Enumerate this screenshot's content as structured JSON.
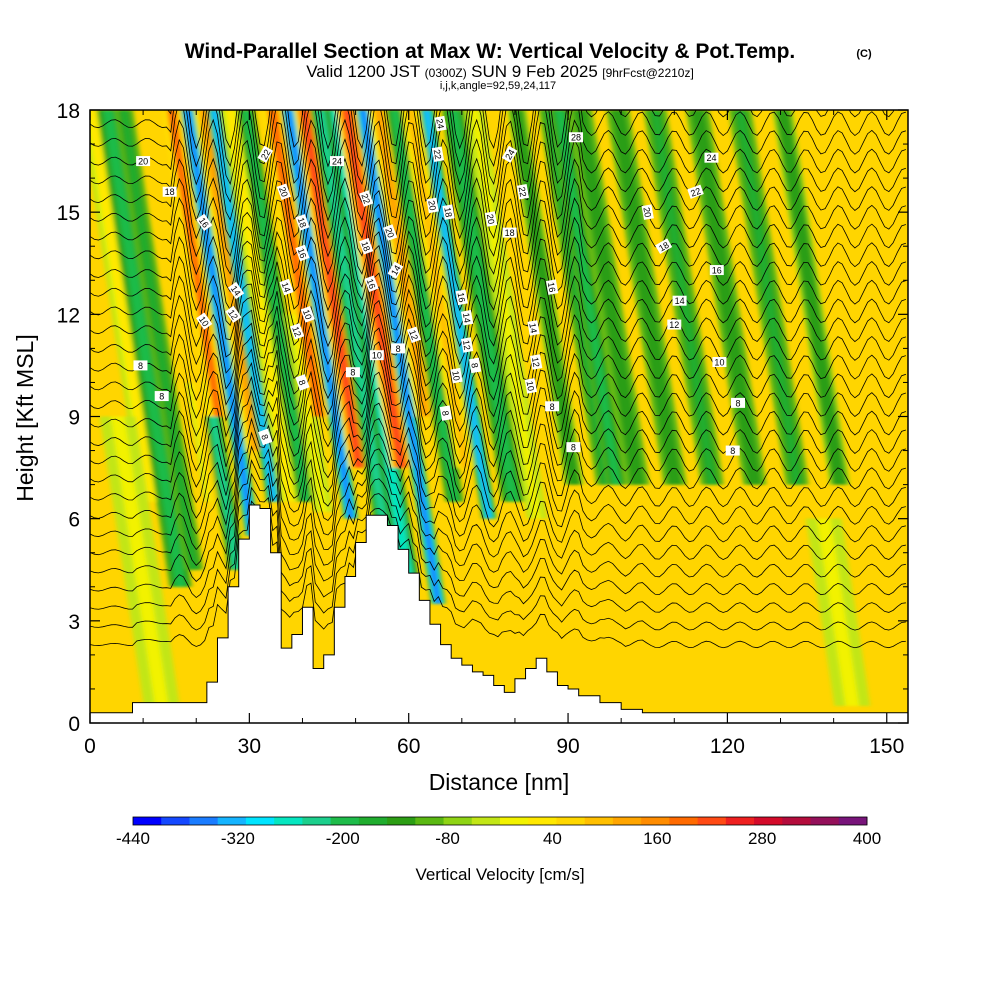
{
  "chart_data": {
    "type": "heatmap",
    "title": "Wind-Parallel Section at Max W: Vertical Velocity & Pot.Temp.",
    "title_mark": "(C)",
    "subtitle": {
      "valid_prefix": "Valid 1200 JST",
      "zulu": "(0300Z)",
      "date": "SUN 9 Feb 2025",
      "forecast": "[9hrFcst@2210z]"
    },
    "indices_label": "i,j,k,angle=92,59,24,117",
    "xlabel": "Distance [nm]",
    "ylabel": "Height [Kft MSL]",
    "xlim": [
      0,
      154
    ],
    "ylim": [
      0,
      18
    ],
    "x_ticks": [
      "0",
      "30",
      "60",
      "90",
      "120",
      "150"
    ],
    "y_ticks": [
      "0",
      "3",
      "6",
      "9",
      "12",
      "15",
      "18"
    ],
    "colorbar": {
      "label": "Vertical Velocity [cm/s]",
      "range": [
        -440,
        400
      ],
      "step": 40,
      "tick_labels": [
        "-440",
        "-320",
        "-200",
        "-80",
        "40",
        "160",
        "280",
        "400"
      ],
      "colors": [
        "#0000ff",
        "#1448ff",
        "#1a7cff",
        "#15b4ff",
        "#00e4ff",
        "#05e6c0",
        "#1ccf8c",
        "#1ebc4a",
        "#20ad2e",
        "#2c9e14",
        "#5ab812",
        "#8fd414",
        "#c2e616",
        "#f2f200",
        "#ffe800",
        "#ffd700",
        "#ffbf00",
        "#ffa500",
        "#ff8c00",
        "#ff6a00",
        "#ff4a14",
        "#ee2020",
        "#d40a2a",
        "#b40c3c",
        "#94105a",
        "#78147a"
      ]
    },
    "terrain_profile": {
      "x": [
        0,
        8,
        20,
        22,
        24,
        26,
        28,
        30,
        32,
        34,
        36,
        38,
        40,
        42,
        44,
        46,
        48,
        50,
        52,
        54,
        56,
        58,
        60,
        62,
        64,
        66,
        68,
        70,
        72,
        74,
        76,
        78,
        80,
        82,
        84,
        86,
        88,
        90,
        92,
        96,
        100,
        104,
        108,
        154
      ],
      "height_kft": [
        0.3,
        0.6,
        0.6,
        1.2,
        2.5,
        4.0,
        5.4,
        6.4,
        6.3,
        5.0,
        2.2,
        2.6,
        3.4,
        1.6,
        2.0,
        3.4,
        4.3,
        5.3,
        6.1,
        6.1,
        5.8,
        5.1,
        4.4,
        3.6,
        2.9,
        2.3,
        1.9,
        1.7,
        1.5,
        1.4,
        1.1,
        0.9,
        1.3,
        1.6,
        1.9,
        1.5,
        1.1,
        1.0,
        0.8,
        0.6,
        0.4,
        0.3,
        0.3,
        0.3
      ]
    },
    "vertical_velocity_field": {
      "units": "cm/s",
      "background": 30,
      "features": [
        {
          "x": 18,
          "w": 1.6,
          "top": 18,
          "bottom": 6.5,
          "value": 120
        },
        {
          "x": 21,
          "w": 1.6,
          "top": 18,
          "bottom": 4.0,
          "value": -130
        },
        {
          "x": 24,
          "w": 1.3,
          "top": 18,
          "bottom": 4.5,
          "value": -90
        },
        {
          "x": 30,
          "w": 1.5,
          "top": 10,
          "bottom": 6.5,
          "value": 170
        },
        {
          "x": 32,
          "w": 1.2,
          "top": 9,
          "bottom": 4.5,
          "value": -170
        },
        {
          "x": 33,
          "w": 1.2,
          "top": 18,
          "bottom": 9,
          "value": 330
        },
        {
          "x": 36,
          "w": 1.0,
          "top": 18,
          "bottom": 5.5,
          "value": -330
        },
        {
          "x": 39,
          "w": 1.3,
          "top": 18,
          "bottom": 8,
          "value": 250
        },
        {
          "x": 41,
          "w": 1.0,
          "top": 18,
          "bottom": 6.5,
          "value": -300
        },
        {
          "x": 44,
          "w": 1.3,
          "top": 18,
          "bottom": 6.5,
          "value": 120
        },
        {
          "x": 47,
          "w": 1.2,
          "top": 18,
          "bottom": 6.5,
          "value": -160
        },
        {
          "x": 50,
          "w": 1.3,
          "top": 12,
          "bottom": 6.2,
          "value": 90
        },
        {
          "x": 52,
          "w": 1.4,
          "top": 18,
          "bottom": 9,
          "value": 330
        },
        {
          "x": 55,
          "w": 1.0,
          "top": 18,
          "bottom": 6,
          "value": -330
        },
        {
          "x": 58,
          "w": 1.4,
          "top": 18,
          "bottom": 7.5,
          "value": 380
        },
        {
          "x": 61,
          "w": 1.4,
          "top": 18,
          "bottom": 5.5,
          "value": -200
        },
        {
          "x": 64,
          "w": 1.5,
          "top": 18,
          "bottom": 4,
          "value": -240
        },
        {
          "x": 66,
          "w": 1.5,
          "top": 18,
          "bottom": 7.5,
          "value": 380
        },
        {
          "x": 69,
          "w": 1.0,
          "top": 18,
          "bottom": 3.5,
          "value": -360
        },
        {
          "x": 72,
          "w": 1.4,
          "top": 18,
          "bottom": 9,
          "value": 260
        },
        {
          "x": 75,
          "w": 1.3,
          "top": 18,
          "bottom": 6.5,
          "value": -160
        },
        {
          "x": 78,
          "w": 1.3,
          "top": 18,
          "bottom": 7.5,
          "value": 200
        },
        {
          "x": 81,
          "w": 1.0,
          "top": 18,
          "bottom": 6,
          "value": -300
        },
        {
          "x": 86,
          "w": 1.6,
          "top": 18,
          "bottom": 6.5,
          "value": -150
        },
        {
          "x": 90,
          "w": 1.4,
          "top": 18,
          "bottom": 6,
          "value": 80
        },
        {
          "x": 98,
          "w": 1.3,
          "top": 18,
          "bottom": 7,
          "value": -70
        },
        {
          "x": 104,
          "w": 1.4,
          "top": 18,
          "bottom": 7,
          "value": -90
        },
        {
          "x": 106,
          "w": 1.3,
          "top": 18,
          "bottom": 7,
          "value": -130
        },
        {
          "x": 110,
          "w": 1.6,
          "top": 18,
          "bottom": 7,
          "value": -80
        },
        {
          "x": 117,
          "w": 1.6,
          "top": 18,
          "bottom": 7,
          "value": -80
        },
        {
          "x": 124,
          "w": 1.6,
          "top": 18,
          "bottom": 7,
          "value": -90
        },
        {
          "x": 132,
          "w": 1.6,
          "top": 18,
          "bottom": 7,
          "value": -80
        },
        {
          "x": 140,
          "w": 1.6,
          "top": 18,
          "bottom": 7,
          "value": -90
        },
        {
          "x": 148,
          "w": 1.4,
          "top": 18,
          "bottom": 7,
          "value": -60
        },
        {
          "x": 14,
          "w": 2.5,
          "top": 9,
          "bottom": 0.5,
          "value": 90
        },
        {
          "x": 144,
          "w": 2.5,
          "top": 6,
          "bottom": 0.5,
          "value": 90
        }
      ]
    },
    "potential_temperature_contours": {
      "units": "degC",
      "interval": 2,
      "labels": [
        {
          "text": "20",
          "x": 10,
          "y": 16.5,
          "rot": 0
        },
        {
          "text": "18",
          "x": 15,
          "y": 15.6,
          "rot": 0
        },
        {
          "text": "16",
          "x": 21.5,
          "y": 14.7,
          "rot": 55
        },
        {
          "text": "14",
          "x": 27.5,
          "y": 12.7,
          "rot": 55
        },
        {
          "text": "12",
          "x": 27,
          "y": 12.0,
          "rot": 55
        },
        {
          "text": "10",
          "x": 21.5,
          "y": 11.8,
          "rot": 55
        },
        {
          "text": "8",
          "x": 9.5,
          "y": 10.5,
          "rot": 0
        },
        {
          "text": "8",
          "x": 13.5,
          "y": 9.6,
          "rot": 0
        },
        {
          "text": "22",
          "x": 33,
          "y": 16.7,
          "rot": -60
        },
        {
          "text": "20",
          "x": 36.5,
          "y": 15.6,
          "rot": 70
        },
        {
          "text": "18",
          "x": 40,
          "y": 14.7,
          "rot": 70
        },
        {
          "text": "16",
          "x": 40,
          "y": 13.8,
          "rot": 70
        },
        {
          "text": "14",
          "x": 37,
          "y": 12.8,
          "rot": 70
        },
        {
          "text": "12",
          "x": 39,
          "y": 11.5,
          "rot": 70
        },
        {
          "text": "10",
          "x": 41,
          "y": 12.0,
          "rot": 70
        },
        {
          "text": "8",
          "x": 40,
          "y": 10.0,
          "rot": 70
        },
        {
          "text": "8",
          "x": 33,
          "y": 8.4,
          "rot": 70
        },
        {
          "text": "24",
          "x": 46.5,
          "y": 16.5,
          "rot": 0
        },
        {
          "text": "22",
          "x": 52,
          "y": 15.4,
          "rot": 70
        },
        {
          "text": "20",
          "x": 56.5,
          "y": 14.4,
          "rot": 70
        },
        {
          "text": "18",
          "x": 52,
          "y": 14.0,
          "rot": 70
        },
        {
          "text": "16",
          "x": 53,
          "y": 12.9,
          "rot": 70
        },
        {
          "text": "14",
          "x": 57.5,
          "y": 13.3,
          "rot": -60
        },
        {
          "text": "12",
          "x": 61,
          "y": 11.4,
          "rot": 70
        },
        {
          "text": "10",
          "x": 54,
          "y": 10.8,
          "rot": 0
        },
        {
          "text": "8",
          "x": 58,
          "y": 11.0,
          "rot": 0
        },
        {
          "text": "8",
          "x": 49.5,
          "y": 10.3,
          "rot": 0
        },
        {
          "text": "24",
          "x": 66,
          "y": 17.6,
          "rot": 80
        },
        {
          "text": "22",
          "x": 65.5,
          "y": 16.7,
          "rot": 80
        },
        {
          "text": "20",
          "x": 64.5,
          "y": 15.2,
          "rot": 80
        },
        {
          "text": "18",
          "x": 67.5,
          "y": 15.0,
          "rot": 80
        },
        {
          "text": "16",
          "x": 70,
          "y": 12.5,
          "rot": 80
        },
        {
          "text": "14",
          "x": 71,
          "y": 11.9,
          "rot": 80
        },
        {
          "text": "12",
          "x": 71,
          "y": 11.1,
          "rot": 80
        },
        {
          "text": "10",
          "x": 69,
          "y": 10.2,
          "rot": 80
        },
        {
          "text": "8",
          "x": 72.5,
          "y": 10.5,
          "rot": 80
        },
        {
          "text": "8",
          "x": 67,
          "y": 9.1,
          "rot": 80
        },
        {
          "text": "24",
          "x": 79,
          "y": 16.7,
          "rot": -60
        },
        {
          "text": "22",
          "x": 81.5,
          "y": 15.6,
          "rot": 80
        },
        {
          "text": "20",
          "x": 75.5,
          "y": 14.8,
          "rot": 80
        },
        {
          "text": "18",
          "x": 79,
          "y": 14.4,
          "rot": 0
        },
        {
          "text": "16",
          "x": 87,
          "y": 12.8,
          "rot": 80
        },
        {
          "text": "14",
          "x": 83.5,
          "y": 11.6,
          "rot": 80
        },
        {
          "text": "12",
          "x": 84,
          "y": 10.6,
          "rot": 80
        },
        {
          "text": "10",
          "x": 83,
          "y": 9.9,
          "rot": 80
        },
        {
          "text": "8",
          "x": 87,
          "y": 9.3,
          "rot": 0
        },
        {
          "text": "8",
          "x": 91,
          "y": 8.1,
          "rot": 0
        },
        {
          "text": "28",
          "x": 91.5,
          "y": 17.2,
          "rot": 0
        },
        {
          "text": "24",
          "x": 117,
          "y": 16.6,
          "rot": 0
        },
        {
          "text": "22",
          "x": 114,
          "y": 15.6,
          "rot": -20
        },
        {
          "text": "20",
          "x": 105,
          "y": 15.0,
          "rot": 80
        },
        {
          "text": "18",
          "x": 108,
          "y": 14.0,
          "rot": -30
        },
        {
          "text": "16",
          "x": 118,
          "y": 13.3,
          "rot": 0
        },
        {
          "text": "14",
          "x": 111,
          "y": 12.4,
          "rot": 0
        },
        {
          "text": "12",
          "x": 110,
          "y": 11.7,
          "rot": 0
        },
        {
          "text": "10",
          "x": 118.5,
          "y": 10.6,
          "rot": 0
        },
        {
          "text": "8",
          "x": 122,
          "y": 9.4,
          "rot": 0
        },
        {
          "text": "8",
          "x": 121,
          "y": 8.0,
          "rot": 0
        }
      ]
    }
  }
}
